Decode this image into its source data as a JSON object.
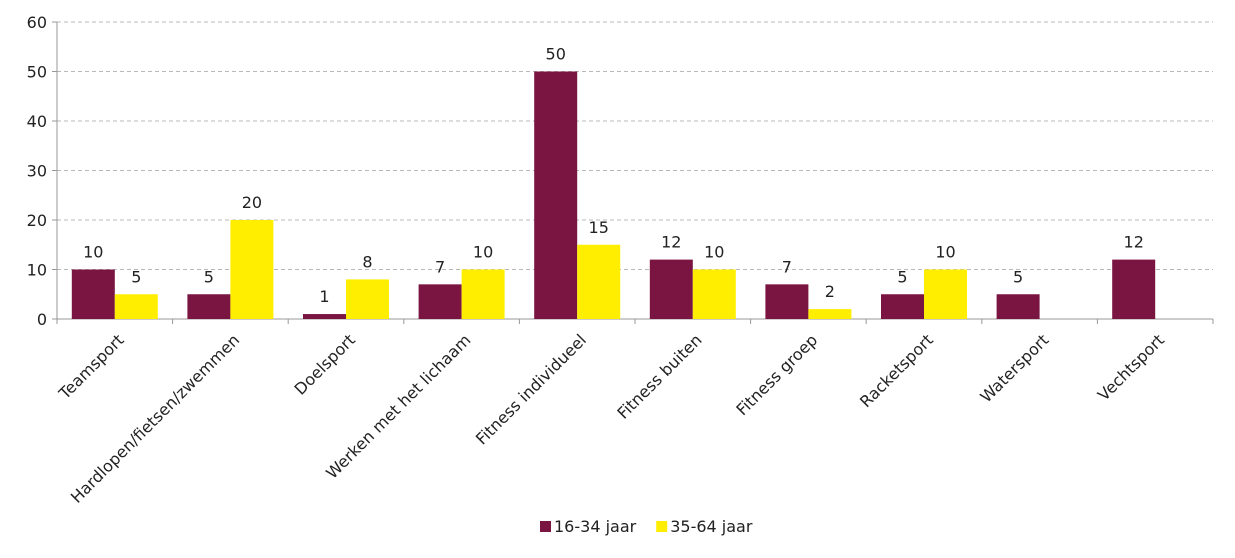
{
  "chart_data": {
    "type": "bar",
    "categories": [
      "Teamsport",
      "Hardlopen/fietsen/zwemmen",
      "Doelsport",
      "Werken met het lichaam",
      "Fitness individueel",
      "Fitness buiten",
      "Fitness groep",
      "Racketsport",
      "Watersport",
      "Vechtsport"
    ],
    "series": [
      {
        "name": "16-34 jaar",
        "color": "#7a1441",
        "values": [
          10,
          5,
          1,
          7,
          50,
          12,
          7,
          5,
          5,
          12
        ]
      },
      {
        "name": "35-64 jaar",
        "color": "#ffee00",
        "values": [
          5,
          20,
          8,
          10,
          15,
          10,
          2,
          10,
          null,
          null
        ]
      }
    ],
    "ylim": [
      0,
      60
    ],
    "yticks": [
      0,
      10,
      20,
      30,
      40,
      50,
      60
    ],
    "grid": true,
    "legend": "bottom"
  }
}
